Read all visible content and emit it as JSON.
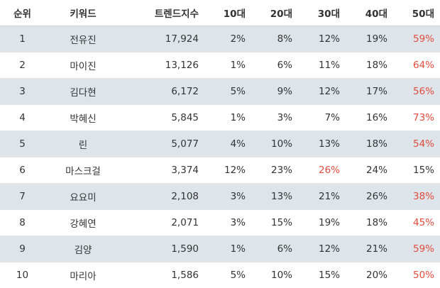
{
  "table": {
    "headers": {
      "rank": "순위",
      "keyword": "키워드",
      "trend_index": "트렌드지수",
      "age10": "10대",
      "age20": "20대",
      "age30": "30대",
      "age40": "40대",
      "age50": "50대"
    },
    "highlight_color": "#e24b3b",
    "row_stripe_color": "#dde5ea",
    "rows": [
      {
        "rank": "1",
        "keyword": "전유진",
        "trend_index": "17,924",
        "age10": "2%",
        "age20": "8%",
        "age30": "12%",
        "age40": "19%",
        "age50": "59%",
        "highlight": "age50"
      },
      {
        "rank": "2",
        "keyword": "마이진",
        "trend_index": "13,126",
        "age10": "1%",
        "age20": "6%",
        "age30": "11%",
        "age40": "18%",
        "age50": "64%",
        "highlight": "age50"
      },
      {
        "rank": "3",
        "keyword": "김다현",
        "trend_index": "6,172",
        "age10": "5%",
        "age20": "9%",
        "age30": "12%",
        "age40": "17%",
        "age50": "56%",
        "highlight": "age50"
      },
      {
        "rank": "4",
        "keyword": "박혜신",
        "trend_index": "5,845",
        "age10": "1%",
        "age20": "3%",
        "age30": "7%",
        "age40": "16%",
        "age50": "73%",
        "highlight": "age50"
      },
      {
        "rank": "5",
        "keyword": "린",
        "trend_index": "5,077",
        "age10": "4%",
        "age20": "10%",
        "age30": "13%",
        "age40": "18%",
        "age50": "54%",
        "highlight": "age50"
      },
      {
        "rank": "6",
        "keyword": "마스크걸",
        "trend_index": "3,374",
        "age10": "12%",
        "age20": "23%",
        "age30": "26%",
        "age40": "24%",
        "age50": "15%",
        "highlight": "age30"
      },
      {
        "rank": "7",
        "keyword": "요요미",
        "trend_index": "2,108",
        "age10": "3%",
        "age20": "13%",
        "age30": "21%",
        "age40": "26%",
        "age50": "38%",
        "highlight": "age50"
      },
      {
        "rank": "8",
        "keyword": "강혜연",
        "trend_index": "2,071",
        "age10": "3%",
        "age20": "15%",
        "age30": "19%",
        "age40": "18%",
        "age50": "45%",
        "highlight": "age50"
      },
      {
        "rank": "9",
        "keyword": "김양",
        "trend_index": "1,590",
        "age10": "1%",
        "age20": "6%",
        "age30": "12%",
        "age40": "21%",
        "age50": "59%",
        "highlight": "age50"
      },
      {
        "rank": "10",
        "keyword": "마리아",
        "trend_index": "1,586",
        "age10": "5%",
        "age20": "10%",
        "age30": "15%",
        "age40": "20%",
        "age50": "50%",
        "highlight": "age50"
      }
    ]
  }
}
